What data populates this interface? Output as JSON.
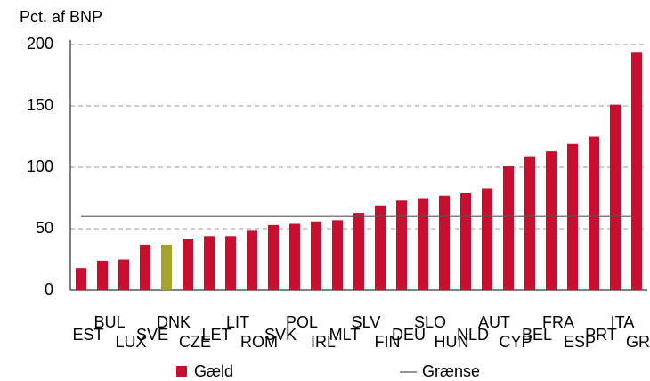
{
  "chart_data": {
    "type": "bar",
    "y_axis_label": "Pct. af BNP",
    "categories": [
      "EST",
      "BUL",
      "LUX",
      "SVE",
      "DNK",
      "CZE",
      "LET",
      "LIT",
      "ROM",
      "SVK",
      "POL",
      "IRL",
      "MLT",
      "SLV",
      "FIN",
      "DEU",
      "SLO",
      "HUN",
      "NLD",
      "AUT",
      "CYP",
      "BEL",
      "FRA",
      "ESP",
      "PRT",
      "ITA",
      "GRC"
    ],
    "series": [
      {
        "name": "Gæld",
        "color": "#c8102e",
        "values": [
          18,
          24,
          25,
          37,
          37,
          42,
          44,
          44,
          49,
          53,
          54,
          56,
          57,
          63,
          69,
          73,
          75,
          77,
          79,
          83,
          101,
          109,
          113,
          119,
          125,
          151,
          194
        ],
        "colors": [
          "#c8102e",
          "#c8102e",
          "#c8102e",
          "#c8102e",
          "#a6a32a",
          "#c8102e",
          "#c8102e",
          "#c8102e",
          "#c8102e",
          "#c8102e",
          "#c8102e",
          "#c8102e",
          "#c8102e",
          "#c8102e",
          "#c8102e",
          "#c8102e",
          "#c8102e",
          "#c8102e",
          "#c8102e",
          "#c8102e",
          "#c8102e",
          "#c8102e",
          "#c8102e",
          "#c8102e",
          "#c8102e",
          "#c8102e",
          "#c8102e"
        ]
      }
    ],
    "reference_line": {
      "name": "Grænse",
      "value": 60,
      "color": "#555555"
    },
    "ylim": [
      0,
      200
    ],
    "yticks": [
      0,
      50,
      100,
      150,
      200
    ],
    "grid": true,
    "legend": "bottom"
  }
}
